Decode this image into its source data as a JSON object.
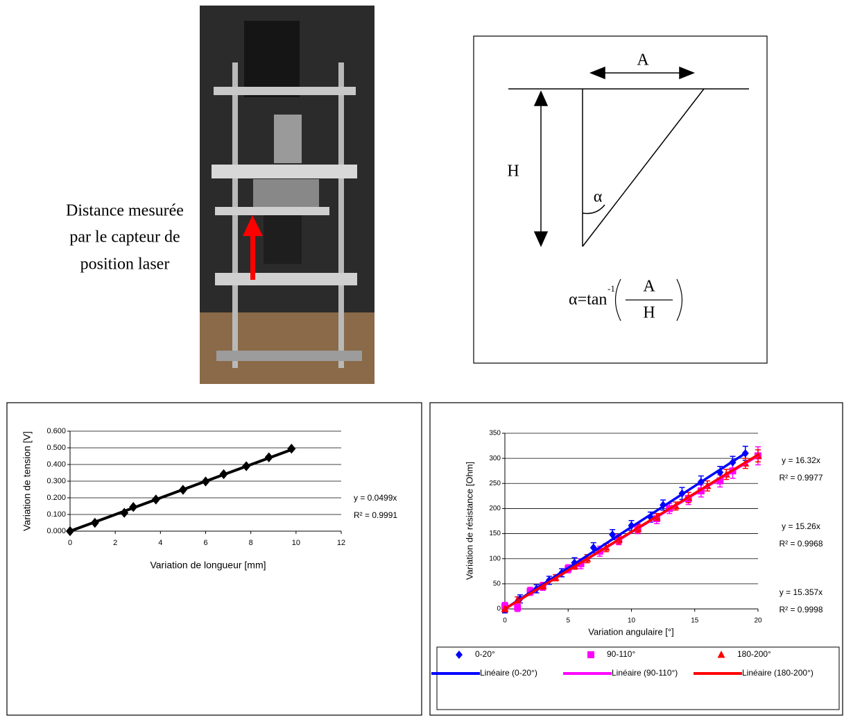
{
  "photo_caption": [
    "Distance mesurée",
    "par le capteur de",
    "position laser"
  ],
  "diagram": {
    "label_a": "A",
    "label_h": "H",
    "label_angle": "α",
    "formula": {
      "lhs": "α=tan",
      "exponent": "-1",
      "numerator": "A",
      "denominator": "H"
    }
  },
  "chart_data": [
    {
      "type": "scatter",
      "xlabel": "Variation de longueur [mm]",
      "ylabel": "Variation de tension [V]",
      "xlim": [
        0,
        12
      ],
      "xticks": [
        0,
        2,
        4,
        6,
        8,
        10,
        12
      ],
      "ylim": [
        0,
        0.6
      ],
      "yticks": [
        {
          "value": 0,
          "label": "0.000"
        },
        {
          "value": 0.1,
          "label": "0.100"
        },
        {
          "value": 0.2,
          "label": "0.200"
        },
        {
          "value": 0.3,
          "label": "0.300"
        },
        {
          "value": 0.4,
          "label": "0.400"
        },
        {
          "value": 0.5,
          "label": "0.500"
        },
        {
          "value": 0.6,
          "label": "0.600"
        }
      ],
      "grid": true,
      "series": [
        {
          "color": "#000000",
          "marker": "diamond",
          "x": [
            0,
            1.1,
            2.4,
            2.8,
            3.8,
            5.0,
            6.0,
            6.8,
            7.8,
            8.8,
            9.8
          ],
          "values": [
            0,
            0.05,
            0.11,
            0.145,
            0.19,
            0.248,
            0.298,
            0.342,
            0.39,
            0.443,
            0.495
          ],
          "errors": [
            0.008,
            0.008,
            0.008,
            0.008,
            0.008,
            0.008,
            0.008,
            0.008,
            0.008,
            0.008,
            0.008
          ],
          "trendline": {
            "slope": 0.0499,
            "equation": "y = 0.0499x",
            "r2": "R² = 0.9991"
          }
        }
      ]
    },
    {
      "type": "scatter",
      "xlabel": "Variation angulaire [°]",
      "ylabel": "Variation de résistance [Ohm]",
      "xlim": [
        0,
        20
      ],
      "xticks": [
        0,
        5,
        10,
        15,
        20
      ],
      "ylim": [
        0,
        350
      ],
      "yticks": [
        0,
        50,
        100,
        150,
        200,
        250,
        300,
        350
      ],
      "grid": true,
      "legend": "bottom",
      "series": [
        {
          "name": "0-20°",
          "color": "#0000ff",
          "marker": "diamond",
          "x": [
            0,
            1.2,
            2.5,
            3.5,
            4.5,
            5.5,
            7,
            8.5,
            10,
            11.5,
            12.5,
            14,
            15.5,
            17,
            18,
            19
          ],
          "values": [
            0,
            20,
            40,
            57,
            72,
            92,
            122,
            148,
            166,
            183,
            207,
            230,
            253,
            272,
            292,
            310
          ],
          "errors": [
            8,
            8,
            8,
            8,
            8,
            10,
            10,
            10,
            10,
            10,
            10,
            12,
            12,
            12,
            12,
            14
          ],
          "trendline": {
            "name": "Linéaire (0-20°)",
            "slope": 16.32,
            "equation": "y = 16.32x",
            "r2": "R² = 0.9977"
          }
        },
        {
          "name": "90-110°",
          "color": "#ff00ff",
          "marker": "square",
          "x": [
            0,
            1,
            2,
            3,
            5,
            6,
            7.5,
            9,
            10.5,
            12,
            13,
            14.5,
            15.5,
            17,
            18,
            20
          ],
          "values": [
            5,
            3,
            35,
            45,
            80,
            90,
            115,
            138,
            160,
            180,
            200,
            220,
            235,
            255,
            275,
            305
          ],
          "errors": [
            8,
            8,
            8,
            8,
            8,
            10,
            10,
            10,
            10,
            10,
            10,
            12,
            12,
            12,
            15,
            18
          ],
          "trendline": {
            "name": "Linéaire (90-110°)",
            "slope": 15.26,
            "equation": "y = 15.26x",
            "r2": "R² = 0.9968"
          }
        },
        {
          "name": "180-200°",
          "color": "#ff0000",
          "marker": "triangle",
          "x": [
            0,
            1,
            3,
            4,
            5.5,
            6.5,
            8,
            9,
            10.5,
            12,
            13.5,
            14.5,
            16,
            17.5,
            19,
            20
          ],
          "values": [
            0,
            18,
            45,
            62,
            85,
            100,
            122,
            138,
            160,
            182,
            205,
            222,
            245,
            268,
            290,
            305
          ],
          "errors": [
            6,
            6,
            6,
            6,
            6,
            8,
            8,
            8,
            8,
            8,
            8,
            10,
            10,
            10,
            10,
            12
          ],
          "trendline": {
            "name": "Linéaire (180-200°)",
            "slope": 15.357,
            "equation": "y = 15.357x",
            "r2": "R² = 0.9998"
          }
        }
      ]
    }
  ]
}
